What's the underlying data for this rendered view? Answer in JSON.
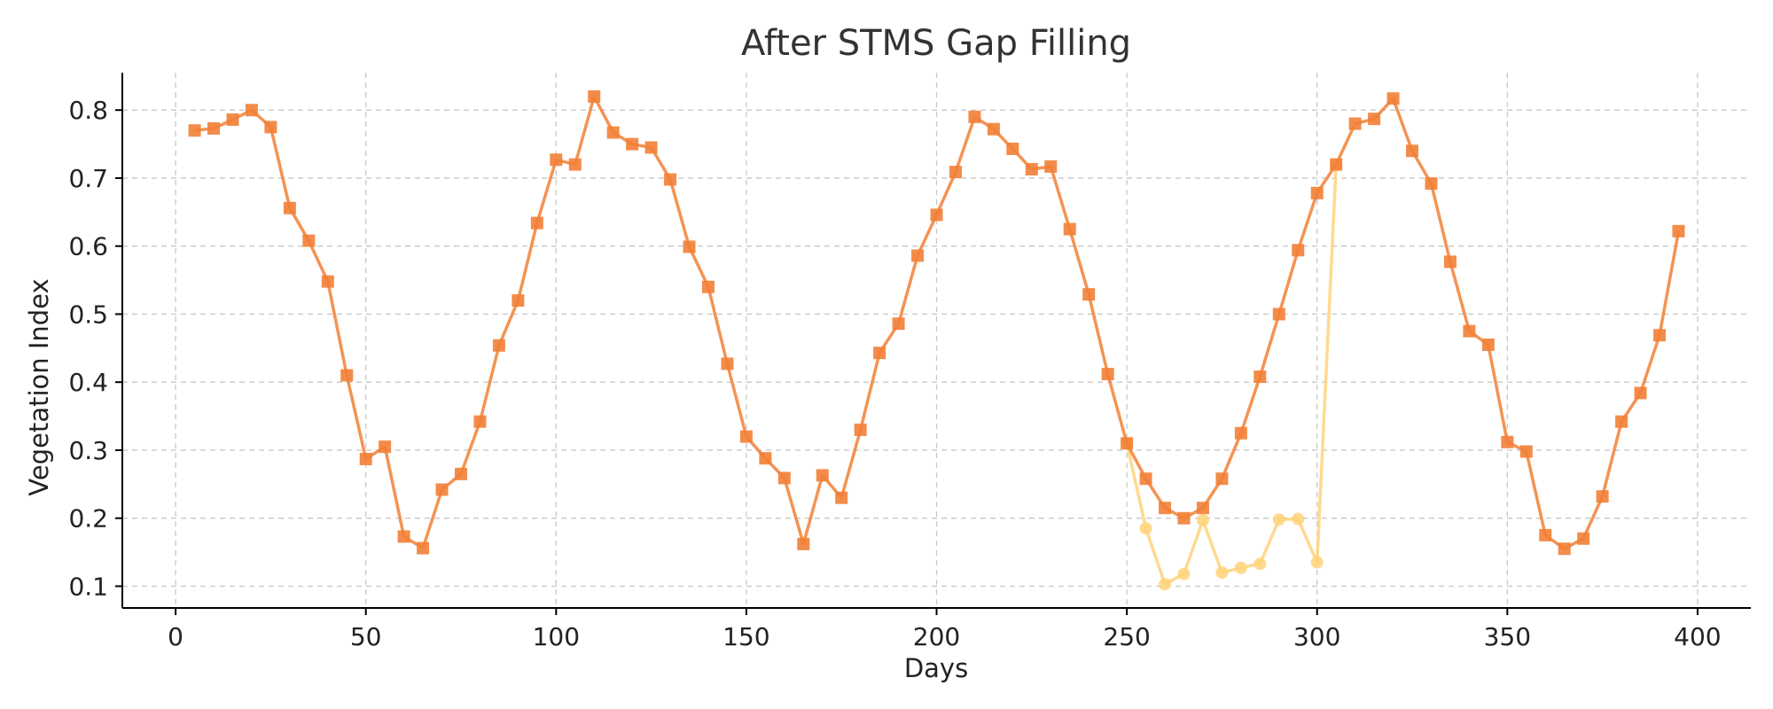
{
  "chart_data": {
    "type": "line",
    "title": "After STMS Gap Filling",
    "xlabel": "Days",
    "ylabel": "Vegetation Index",
    "xlim": [
      -14,
      414
    ],
    "ylim": [
      0.068,
      0.855
    ],
    "xticks": [
      0,
      50,
      100,
      150,
      200,
      250,
      300,
      350,
      400
    ],
    "yticks": [
      0.1,
      0.2,
      0.3,
      0.4,
      0.5,
      0.6,
      0.7,
      0.8
    ],
    "grid": true,
    "legend": "none",
    "series": [
      {
        "color": "#ffd27a",
        "marker": "circle",
        "x": [
          250,
          255,
          260,
          265,
          270,
          275,
          280,
          285,
          290,
          295,
          300,
          305
        ],
        "y": [
          0.31,
          0.185,
          0.103,
          0.118,
          0.197,
          0.12,
          0.127,
          0.133,
          0.198,
          0.199,
          0.135,
          0.72
        ]
      },
      {
        "color": "#f28036",
        "marker": "square",
        "x": [
          5,
          10,
          15,
          20,
          25,
          30,
          35,
          40,
          45,
          50,
          55,
          60,
          65,
          70,
          75,
          80,
          85,
          90,
          95,
          100,
          105,
          110,
          115,
          120,
          125,
          130,
          135,
          140,
          145,
          150,
          155,
          160,
          165,
          170,
          175,
          180,
          185,
          190,
          195,
          200,
          205,
          210,
          215,
          220,
          225,
          230,
          235,
          240,
          245,
          250,
          255,
          260,
          265,
          270,
          275,
          280,
          285,
          290,
          295,
          300,
          305,
          310,
          315,
          320,
          325,
          330,
          335,
          340,
          345,
          350,
          355,
          360,
          365,
          370,
          375,
          380,
          385,
          390,
          395
        ],
        "y": [
          0.77,
          0.773,
          0.786,
          0.8,
          0.775,
          0.656,
          0.608,
          0.548,
          0.41,
          0.287,
          0.305,
          0.173,
          0.156,
          0.242,
          0.265,
          0.342,
          0.454,
          0.52,
          0.634,
          0.727,
          0.72,
          0.82,
          0.767,
          0.75,
          0.745,
          0.698,
          0.599,
          0.54,
          0.427,
          0.32,
          0.288,
          0.259,
          0.162,
          0.263,
          0.23,
          0.33,
          0.443,
          0.486,
          0.586,
          0.646,
          0.709,
          0.79,
          0.772,
          0.743,
          0.713,
          0.717,
          0.625,
          0.529,
          0.412,
          0.31,
          0.258,
          0.215,
          0.2,
          0.215,
          0.258,
          0.325,
          0.408,
          0.5,
          0.594,
          0.678,
          0.72,
          0.78,
          0.787,
          0.817,
          0.74,
          0.692,
          0.577,
          0.475,
          0.455,
          0.312,
          0.298,
          0.175,
          0.155,
          0.17,
          0.232,
          0.342,
          0.384,
          0.469,
          0.622
        ]
      }
    ]
  }
}
